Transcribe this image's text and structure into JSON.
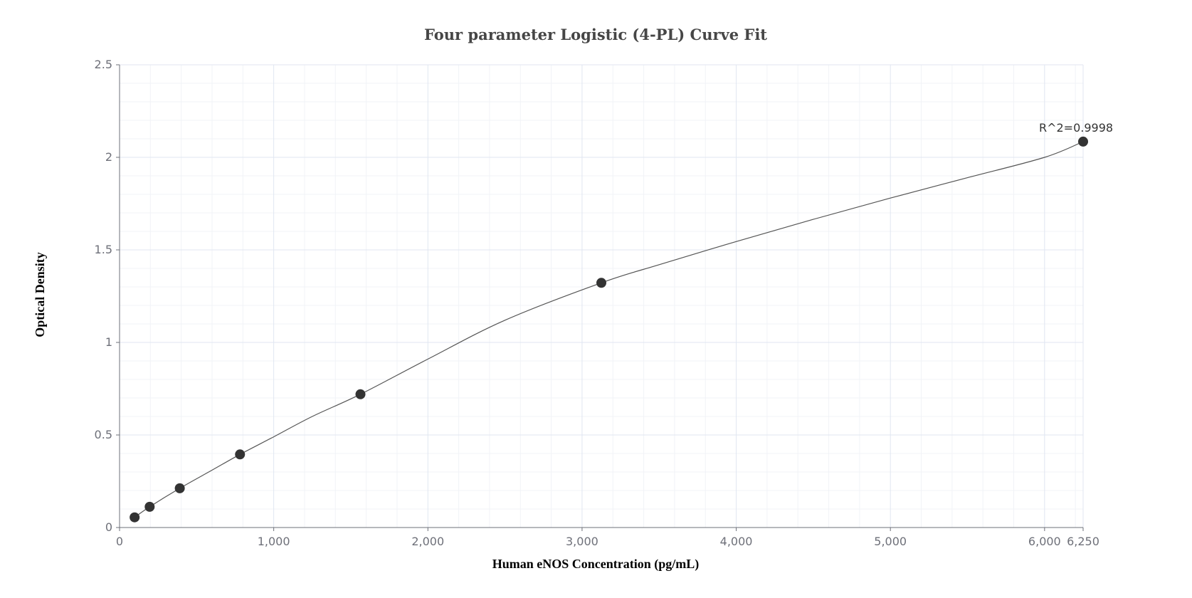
{
  "chart_data": {
    "type": "scatter",
    "title": "Four parameter Logistic (4-PL) Curve Fit",
    "xlabel": "Human eNOS Concentration (pg/mL)",
    "ylabel": "Optical Density",
    "xlim": [
      0,
      6250
    ],
    "ylim": [
      0,
      2.5
    ],
    "x_ticks": [
      0,
      1000,
      2000,
      3000,
      4000,
      5000,
      6000,
      6250
    ],
    "x_tick_labels": [
      "0",
      "1,000",
      "2,000",
      "3,000",
      "4,000",
      "5,000",
      "6,000",
      "6,250"
    ],
    "y_ticks": [
      0,
      0.5,
      1,
      1.5,
      2,
      2.5
    ],
    "y_tick_labels": [
      "0",
      "0.5",
      "1",
      "1.5",
      "2",
      "2.5"
    ],
    "grid": true,
    "series": [
      {
        "type": "scatter",
        "points": [
          {
            "x": 97.66,
            "y": 0.055
          },
          {
            "x": 195.31,
            "y": 0.112
          },
          {
            "x": 390.63,
            "y": 0.212
          },
          {
            "x": 781.25,
            "y": 0.395
          },
          {
            "x": 1562.5,
            "y": 0.72
          },
          {
            "x": 3125,
            "y": 1.322
          },
          {
            "x": 6250,
            "y": 2.085
          }
        ]
      },
      {
        "type": "line",
        "points": [
          {
            "x": 97.66,
            "y": 0.055
          },
          {
            "x": 195.31,
            "y": 0.112
          },
          {
            "x": 390.63,
            "y": 0.212
          },
          {
            "x": 600,
            "y": 0.31
          },
          {
            "x": 781.25,
            "y": 0.395
          },
          {
            "x": 1000,
            "y": 0.49
          },
          {
            "x": 1250,
            "y": 0.6
          },
          {
            "x": 1562.5,
            "y": 0.72
          },
          {
            "x": 2000,
            "y": 0.91
          },
          {
            "x": 2500,
            "y": 1.12
          },
          {
            "x": 3125,
            "y": 1.322
          },
          {
            "x": 3500,
            "y": 1.42
          },
          {
            "x": 4000,
            "y": 1.545
          },
          {
            "x": 4500,
            "y": 1.665
          },
          {
            "x": 5000,
            "y": 1.78
          },
          {
            "x": 5500,
            "y": 1.89
          },
          {
            "x": 6000,
            "y": 2.0
          },
          {
            "x": 6250,
            "y": 2.085
          }
        ]
      }
    ],
    "annotation": {
      "text": "R^2=0.9998",
      "x": 6250,
      "y": 2.085
    }
  }
}
